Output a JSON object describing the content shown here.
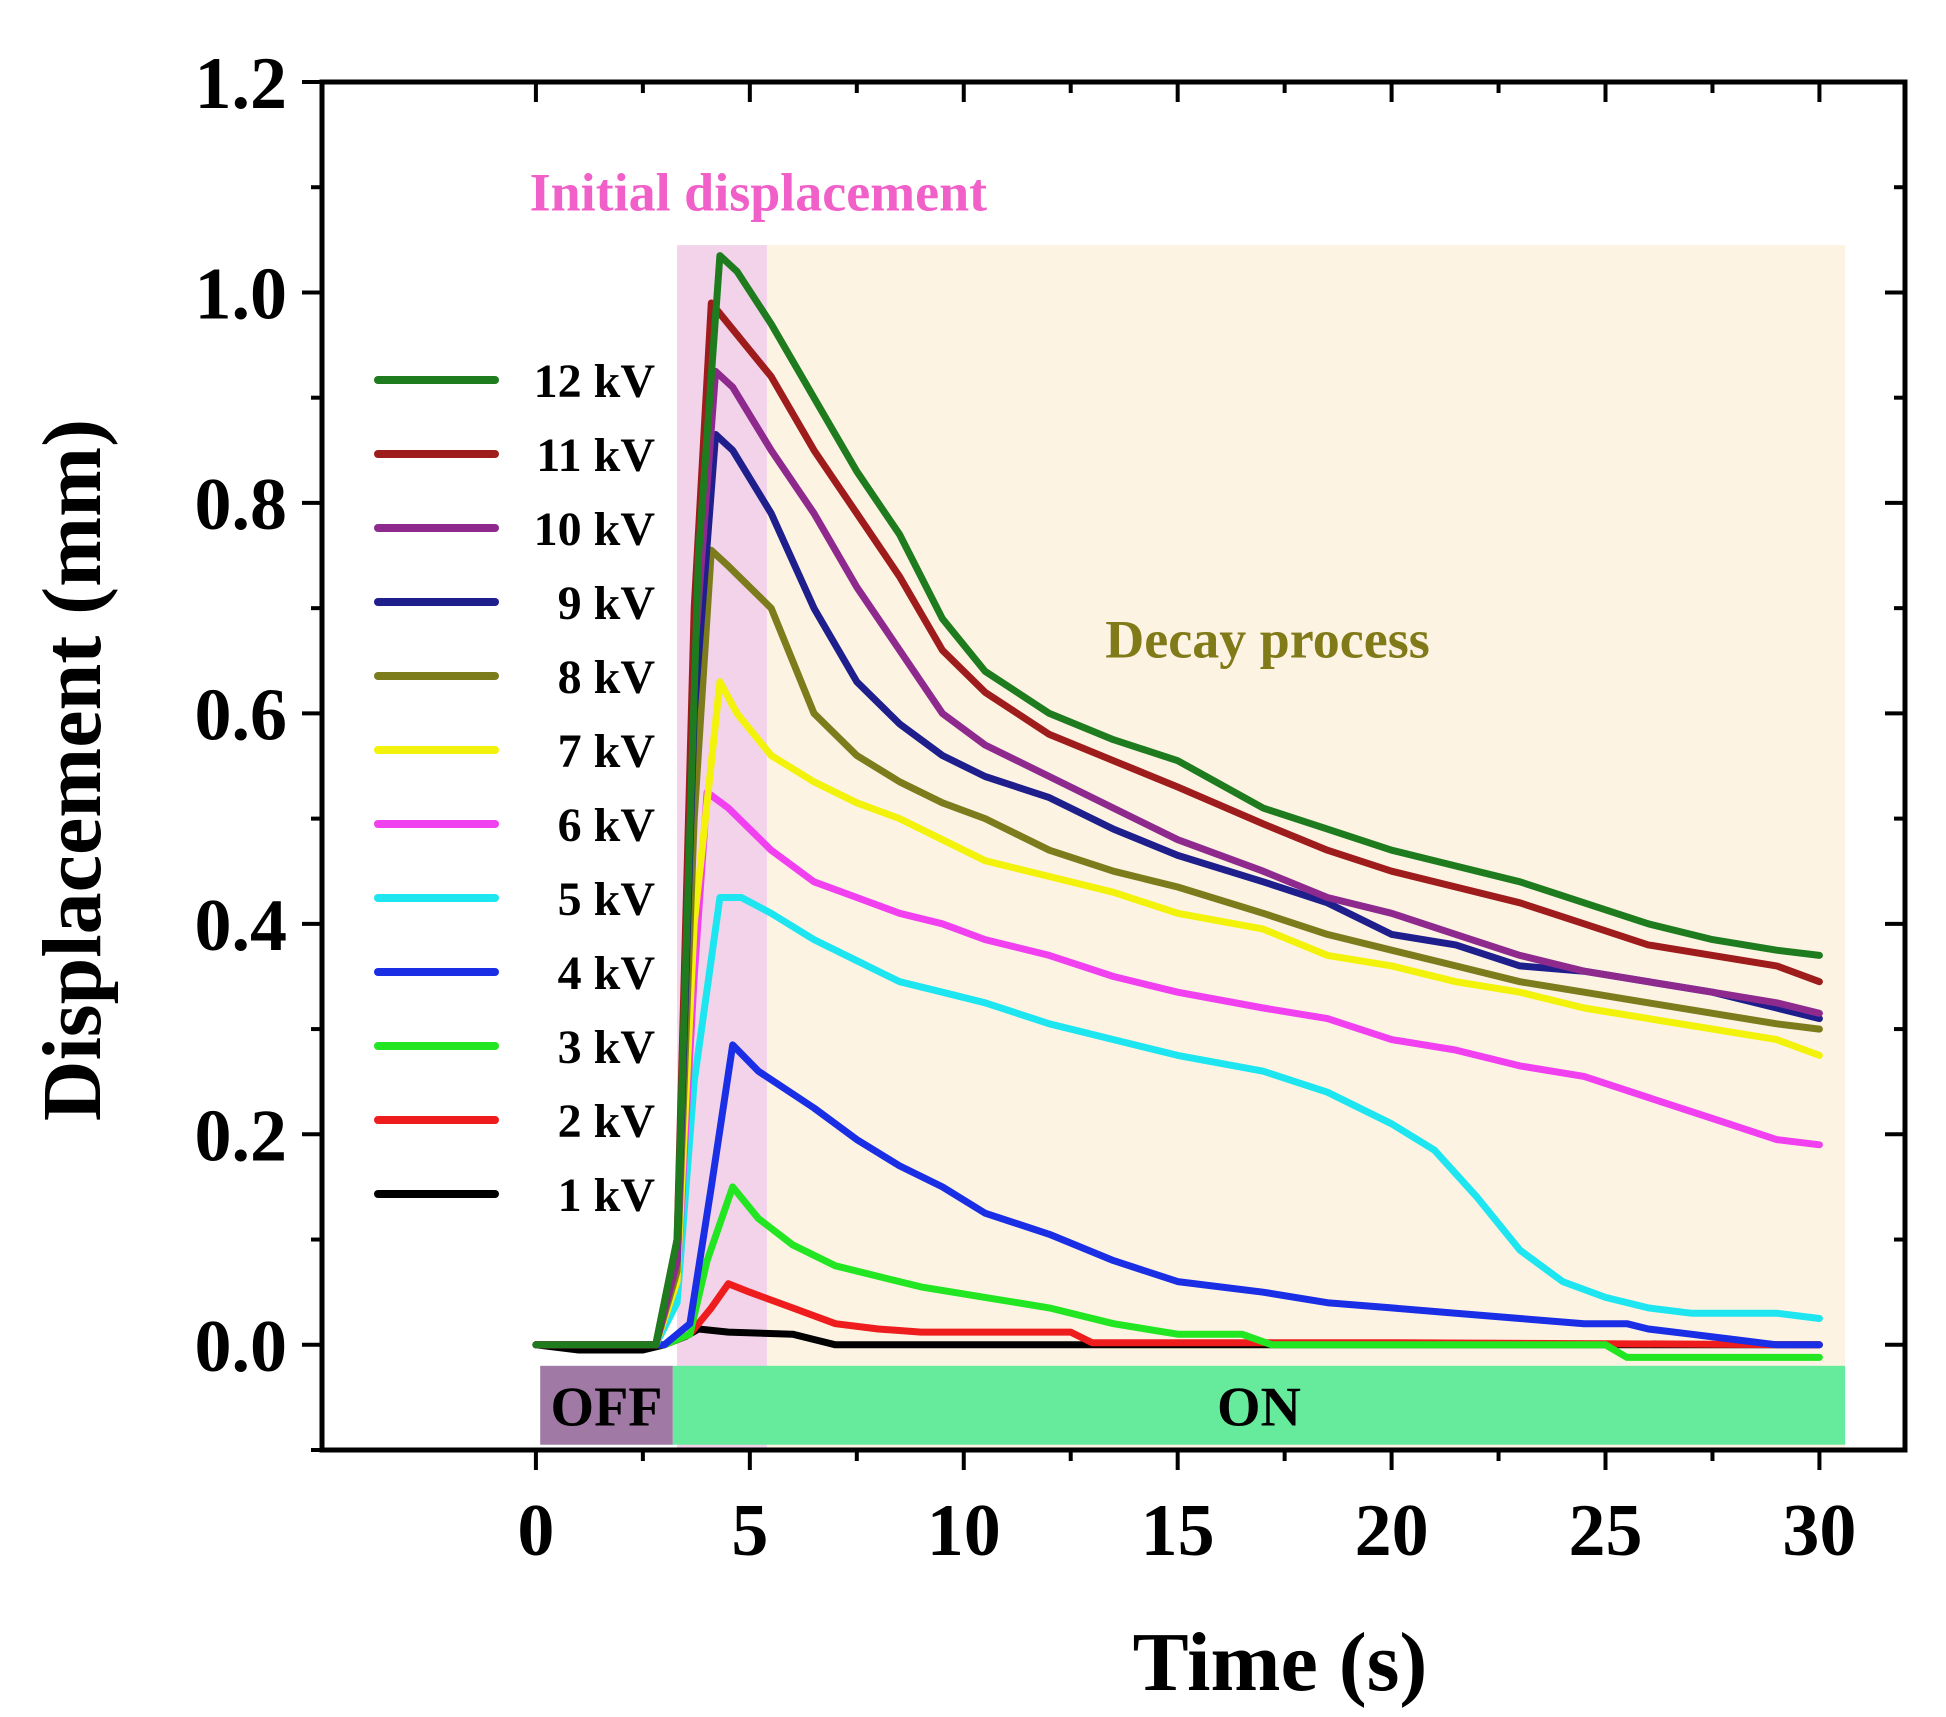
{
  "chart_data": {
    "type": "line",
    "xlabel": "Time (s)",
    "ylabel": "Displacement (mm)",
    "xlim": [
      -5,
      32
    ],
    "ylim": [
      -0.1,
      1.2
    ],
    "xticks": [
      0,
      5,
      10,
      15,
      20,
      25,
      30
    ],
    "xtick_labels": [
      "0",
      "5",
      "10",
      "15",
      "20",
      "25",
      "30"
    ],
    "yticks": [
      0.0,
      0.2,
      0.4,
      0.6,
      0.8,
      1.0,
      1.2
    ],
    "ytick_labels": [
      "0.0",
      "0.2",
      "0.4",
      "0.6",
      "0.8",
      "1.0",
      "1.2"
    ],
    "grid": false,
    "legend_position": "left",
    "regions": [
      {
        "name": "initial",
        "x0": 3.3,
        "x1": 5.4,
        "y0": -0.1,
        "y1": 1.045,
        "color": "#f3d3ea"
      },
      {
        "name": "decay",
        "x0": 5.4,
        "x1": 30.6,
        "y0": -0.1,
        "y1": 1.045,
        "color": "#fdf3e3"
      }
    ],
    "bars": [
      {
        "label": "OFF",
        "x0": 0.1,
        "x1": 3.2,
        "y0": -0.095,
        "y1": -0.02,
        "color": "#a07aa4"
      },
      {
        "label": "ON",
        "x0": 3.2,
        "x1": 30.6,
        "y0": -0.095,
        "y1": -0.02,
        "color": "#66ea9c"
      }
    ],
    "annotations": [
      {
        "text": "Initial displacement",
        "x": 5.2,
        "y": 1.095,
        "color": "#f060c8"
      },
      {
        "text": "Decay process",
        "x": 17.1,
        "y": 0.67,
        "color": "#807a18"
      }
    ],
    "series": [
      {
        "name": "12 kV",
        "color": "#1e7c1e",
        "x": [
          0,
          2.8,
          3.3,
          3.8,
          4.3,
          4.7,
          5.5,
          6.5,
          7.5,
          8.5,
          9.5,
          10.5,
          12,
          13.5,
          15,
          17,
          18.5,
          20,
          21.5,
          23,
          24.5,
          26,
          27.5,
          29,
          30
        ],
        "values": [
          0,
          0,
          0.1,
          0.75,
          1.035,
          1.02,
          0.97,
          0.9,
          0.83,
          0.77,
          0.69,
          0.64,
          0.6,
          0.575,
          0.555,
          0.51,
          0.49,
          0.47,
          0.455,
          0.44,
          0.42,
          0.4,
          0.385,
          0.375,
          0.37
        ]
      },
      {
        "name": "11 kV",
        "color": "#9e1c1c",
        "x": [
          0,
          2.8,
          3.3,
          3.7,
          4.1,
          4.5,
          5.5,
          6.5,
          7.5,
          8.5,
          9.5,
          10.5,
          12,
          13.5,
          15,
          17,
          18.5,
          20,
          21.5,
          23,
          24.5,
          26,
          27.5,
          29,
          30
        ],
        "values": [
          0,
          0,
          0.1,
          0.7,
          0.99,
          0.97,
          0.92,
          0.85,
          0.79,
          0.73,
          0.66,
          0.62,
          0.58,
          0.555,
          0.53,
          0.495,
          0.47,
          0.45,
          0.435,
          0.42,
          0.4,
          0.38,
          0.37,
          0.36,
          0.345
        ]
      },
      {
        "name": "10 kV",
        "color": "#8e2a8e",
        "x": [
          0,
          2.8,
          3.3,
          3.7,
          4.2,
          4.6,
          5.5,
          6.5,
          7.5,
          8.5,
          9.5,
          10.5,
          12,
          13.5,
          15,
          17,
          18.5,
          20,
          21.5,
          23,
          24.5,
          26,
          27.5,
          29,
          30
        ],
        "values": [
          0,
          0,
          0.08,
          0.65,
          0.925,
          0.91,
          0.85,
          0.79,
          0.72,
          0.66,
          0.6,
          0.57,
          0.54,
          0.51,
          0.48,
          0.45,
          0.425,
          0.41,
          0.39,
          0.37,
          0.355,
          0.345,
          0.335,
          0.325,
          0.315
        ]
      },
      {
        "name": "9 kV",
        "color": "#1e1e8c",
        "x": [
          0,
          2.8,
          3.3,
          3.7,
          4.2,
          4.6,
          5.5,
          6.5,
          7.5,
          8.5,
          9.5,
          10.5,
          12,
          13.5,
          15,
          17,
          18.5,
          20,
          21.5,
          23,
          24.5,
          26,
          27.5,
          29,
          30
        ],
        "values": [
          0,
          0,
          0.08,
          0.6,
          0.865,
          0.85,
          0.79,
          0.7,
          0.63,
          0.59,
          0.56,
          0.54,
          0.52,
          0.49,
          0.465,
          0.44,
          0.42,
          0.39,
          0.38,
          0.36,
          0.355,
          0.345,
          0.335,
          0.32,
          0.31
        ]
      },
      {
        "name": "8 kV",
        "color": "#7c7c1c",
        "x": [
          0,
          2.8,
          3.3,
          3.7,
          4.1,
          4.5,
          5.5,
          6.5,
          7.5,
          8.5,
          9.5,
          10.5,
          12,
          13.5,
          15,
          17,
          18.5,
          20,
          21.5,
          23,
          24.5,
          26,
          27.5,
          29,
          30
        ],
        "values": [
          0,
          0,
          0.07,
          0.5,
          0.755,
          0.74,
          0.7,
          0.6,
          0.56,
          0.535,
          0.515,
          0.5,
          0.47,
          0.45,
          0.435,
          0.41,
          0.39,
          0.375,
          0.36,
          0.345,
          0.335,
          0.325,
          0.315,
          0.305,
          0.3
        ]
      },
      {
        "name": "7 kV",
        "color": "#f2f20a",
        "x": [
          0,
          2.8,
          3.3,
          3.7,
          4.3,
          4.7,
          5.5,
          6.5,
          7.5,
          8.5,
          9.5,
          10.5,
          12,
          13.5,
          15,
          17,
          18.5,
          20,
          21.5,
          23,
          24.5,
          26,
          27.5,
          29,
          30
        ],
        "values": [
          0,
          0,
          0.06,
          0.4,
          0.63,
          0.6,
          0.56,
          0.535,
          0.515,
          0.5,
          0.48,
          0.46,
          0.445,
          0.43,
          0.41,
          0.395,
          0.37,
          0.36,
          0.345,
          0.335,
          0.32,
          0.31,
          0.3,
          0.29,
          0.275
        ]
      },
      {
        "name": "6 kV",
        "color": "#f040f0",
        "x": [
          0,
          2.8,
          3.3,
          3.7,
          4.0,
          4.5,
          5.5,
          6.5,
          7.5,
          8.5,
          9.5,
          10.5,
          12,
          13.5,
          15,
          17,
          18.5,
          20,
          21.5,
          23,
          24.5,
          26,
          27.5,
          29,
          30
        ],
        "values": [
          0,
          0,
          0.06,
          0.35,
          0.525,
          0.51,
          0.47,
          0.44,
          0.425,
          0.41,
          0.4,
          0.385,
          0.37,
          0.35,
          0.335,
          0.32,
          0.31,
          0.29,
          0.28,
          0.265,
          0.255,
          0.235,
          0.215,
          0.195,
          0.19
        ]
      },
      {
        "name": "5 kV",
        "color": "#1ee6f0",
        "x": [
          0,
          2.8,
          3.3,
          3.7,
          4.3,
          4.8,
          5.5,
          6.5,
          7.5,
          8.5,
          9.5,
          10.5,
          12,
          13.5,
          15,
          17,
          18.5,
          20,
          21,
          22,
          23,
          24,
          25,
          26,
          27,
          28,
          29,
          30
        ],
        "values": [
          0,
          0,
          0.04,
          0.25,
          0.425,
          0.425,
          0.41,
          0.385,
          0.365,
          0.345,
          0.335,
          0.325,
          0.305,
          0.29,
          0.275,
          0.26,
          0.24,
          0.21,
          0.185,
          0.14,
          0.09,
          0.06,
          0.045,
          0.035,
          0.03,
          0.03,
          0.03,
          0.025
        ]
      },
      {
        "name": "4 kV",
        "color": "#1a2ee6",
        "x": [
          0,
          3.0,
          3.6,
          4.1,
          4.6,
          5.2,
          6.5,
          7.5,
          8.5,
          9.5,
          10.5,
          12,
          13.5,
          15,
          17,
          18.5,
          20,
          21.5,
          23,
          24.5,
          25.5,
          26,
          27,
          28,
          29,
          30
        ],
        "values": [
          0,
          0,
          0.02,
          0.15,
          0.285,
          0.26,
          0.225,
          0.195,
          0.17,
          0.15,
          0.125,
          0.105,
          0.08,
          0.06,
          0.05,
          0.04,
          0.035,
          0.03,
          0.025,
          0.02,
          0.02,
          0.015,
          0.01,
          0.005,
          0,
          0
        ]
      },
      {
        "name": "3 kV",
        "color": "#22e622",
        "x": [
          0,
          3.0,
          3.6,
          4.0,
          4.6,
          5.2,
          6.0,
          7.0,
          8.0,
          9.0,
          10.5,
          12,
          13.5,
          15,
          16.5,
          17.2,
          20,
          22,
          24,
          25,
          25.5,
          27,
          30
        ],
        "values": [
          0,
          0,
          0.01,
          0.08,
          0.15,
          0.12,
          0.095,
          0.075,
          0.065,
          0.055,
          0.045,
          0.035,
          0.02,
          0.01,
          0.01,
          0,
          0,
          0,
          0,
          0,
          -0.012,
          -0.012,
          -0.012
        ]
      },
      {
        "name": "2 kV",
        "color": "#ee1c1c",
        "x": [
          0,
          3.0,
          3.6,
          4.1,
          4.5,
          5.0,
          6.0,
          7.0,
          8.0,
          9.0,
          10.5,
          12.5,
          13,
          15,
          20,
          25,
          30
        ],
        "values": [
          0,
          0,
          0.01,
          0.035,
          0.058,
          0.05,
          0.035,
          0.02,
          0.015,
          0.012,
          0.012,
          0.012,
          0.002,
          0.002,
          0.002,
          0.001,
          0
        ]
      },
      {
        "name": "1 kV",
        "color": "#000000",
        "x": [
          0,
          1.0,
          2.5,
          3.0,
          3.5,
          3.8,
          4.5,
          6.0,
          6.5,
          7.0,
          7.5,
          10,
          15,
          20,
          25,
          30
        ],
        "values": [
          0,
          -0.005,
          -0.005,
          0,
          0.008,
          0.015,
          0.012,
          0.01,
          0.005,
          0,
          0,
          0,
          0,
          0,
          0,
          0
        ]
      }
    ]
  }
}
